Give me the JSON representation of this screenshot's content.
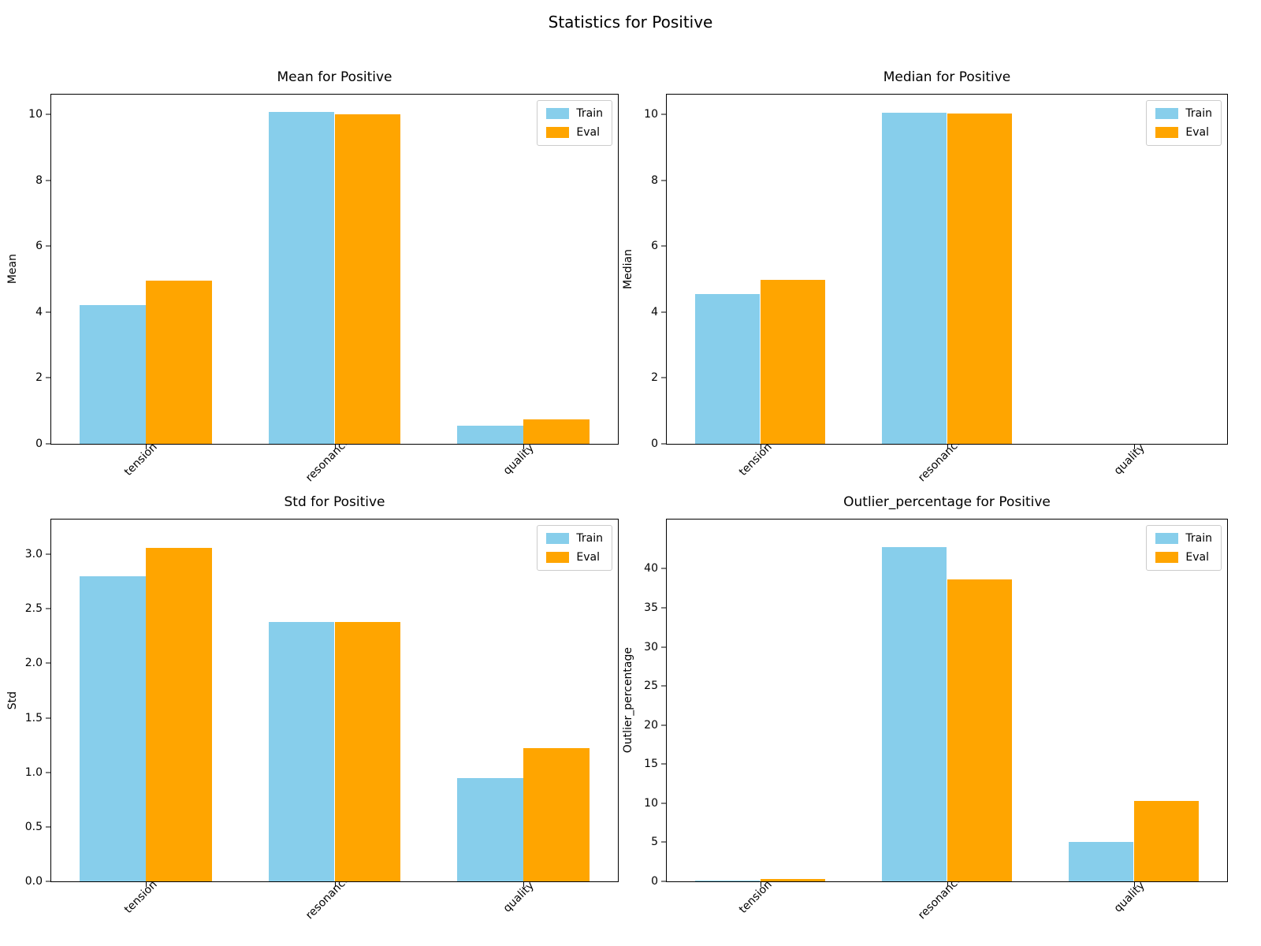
{
  "figure": {
    "suptitle": "Statistics for Positive",
    "legend_labels": [
      "Train",
      "Eval"
    ],
    "colors": {
      "train": "#87CEEB",
      "eval": "#FFA500"
    }
  },
  "chart_data": [
    {
      "type": "bar",
      "title": "Mean for Positive",
      "ylabel": "Mean",
      "categories": [
        "tension",
        "resonance",
        "quality"
      ],
      "series": [
        {
          "name": "Train",
          "values": [
            4.2,
            10.08,
            0.55
          ]
        },
        {
          "name": "Eval",
          "values": [
            4.95,
            10.0,
            0.75
          ]
        }
      ],
      "yticks": [
        0,
        2,
        4,
        6,
        8,
        10
      ],
      "ytick_labels": [
        "0",
        "2",
        "4",
        "6",
        "8",
        "10"
      ],
      "ylim": [
        0,
        10.6
      ],
      "bar_width": 0.35,
      "grid": false,
      "legend_position": "upper right"
    },
    {
      "type": "bar",
      "title": "Median for Positive",
      "ylabel": "Median",
      "categories": [
        "tension",
        "resonance",
        "quality"
      ],
      "series": [
        {
          "name": "Train",
          "values": [
            4.55,
            10.06,
            0.0
          ]
        },
        {
          "name": "Eval",
          "values": [
            4.97,
            10.03,
            0.0
          ]
        }
      ],
      "yticks": [
        0,
        2,
        4,
        6,
        8,
        10
      ],
      "ytick_labels": [
        "0",
        "2",
        "4",
        "6",
        "8",
        "10"
      ],
      "ylim": [
        0,
        10.6
      ],
      "bar_width": 0.35,
      "grid": false,
      "legend_position": "upper right"
    },
    {
      "type": "bar",
      "title": "Std for Positive",
      "ylabel": "Std",
      "categories": [
        "tension",
        "resonance",
        "quality"
      ],
      "series": [
        {
          "name": "Train",
          "values": [
            2.8,
            2.38,
            0.95
          ]
        },
        {
          "name": "Eval",
          "values": [
            3.06,
            2.38,
            1.22
          ]
        }
      ],
      "yticks": [
        0,
        0.5,
        1,
        1.5,
        2,
        2.5,
        3
      ],
      "ytick_labels": [
        "0.0",
        "0.5",
        "1.0",
        "1.5",
        "2.0",
        "2.5",
        "3.0"
      ],
      "ylim": [
        0,
        3.32
      ],
      "bar_width": 0.35,
      "grid": false,
      "legend_position": "upper right"
    },
    {
      "type": "bar",
      "title": "Outlier_percentage for Positive",
      "ylabel": "Outlier_percentage",
      "categories": [
        "tension",
        "resonance",
        "quality"
      ],
      "series": [
        {
          "name": "Train",
          "values": [
            0.1,
            42.8,
            5.0
          ]
        },
        {
          "name": "Eval",
          "values": [
            0.3,
            38.6,
            10.3
          ]
        }
      ],
      "yticks": [
        0,
        5,
        10,
        15,
        20,
        25,
        30,
        35,
        40
      ],
      "ytick_labels": [
        "0",
        "5",
        "10",
        "15",
        "20",
        "25",
        "30",
        "35",
        "40"
      ],
      "ylim": [
        0,
        46.3
      ],
      "bar_width": 0.35,
      "grid": false,
      "legend_position": "upper right"
    }
  ]
}
